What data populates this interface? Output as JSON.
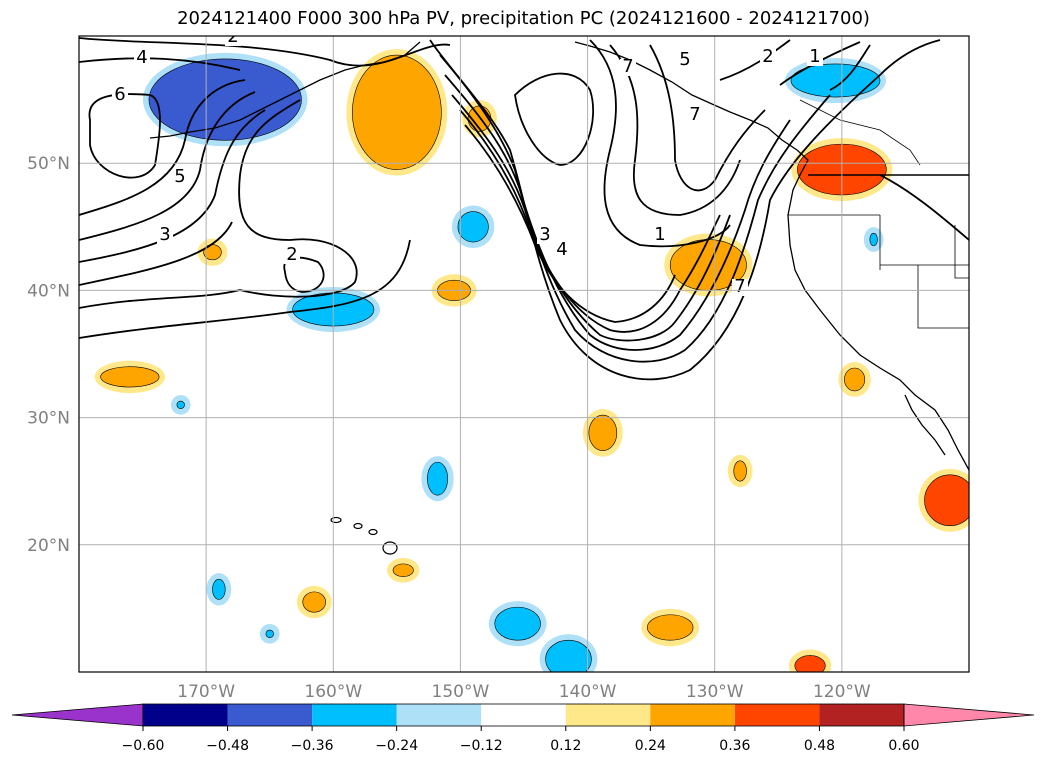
{
  "chart_data": {
    "type": "contour-map",
    "title": "2024121400 F000 300 hPa PV, precipitation PC (2024121600 - 2024121700)",
    "lon_range": [
      -180,
      -110
    ],
    "lat_range": [
      10,
      60
    ],
    "grid": true,
    "lat_ticks": [
      {
        "value": 50,
        "label": "50°N"
      },
      {
        "value": 40,
        "label": "40°N"
      },
      {
        "value": 30,
        "label": "30°N"
      },
      {
        "value": 20,
        "label": "20°N"
      }
    ],
    "lon_ticks": [
      {
        "value": -170,
        "label": "170°W"
      },
      {
        "value": -160,
        "label": "160°W"
      },
      {
        "value": -150,
        "label": "150°W"
      },
      {
        "value": -140,
        "label": "140°W"
      },
      {
        "value": -130,
        "label": "130°W"
      },
      {
        "value": -120,
        "label": "120°W"
      }
    ],
    "colorbar": {
      "ticks": [
        "−0.60",
        "−0.48",
        "−0.36",
        "−0.24",
        "−0.12",
        "0.12",
        "0.24",
        "0.36",
        "0.48",
        "0.60"
      ],
      "colors": [
        "#9933cc",
        "#00008b",
        "#3a5bd0",
        "#00bfff",
        "#aee0f8",
        "#ffffff",
        "#ffe88a",
        "#ffa500",
        "#ff4500",
        "#b22222",
        "#ff88aa"
      ],
      "extend": "both"
    },
    "pv_contour_labels": [
      "2",
      "4",
      "6",
      "5",
      "3",
      "2",
      "3",
      "4",
      "7",
      "1",
      "2",
      "1",
      "7",
      "5",
      "7"
    ],
    "precip_blobs": [
      {
        "lon": -168.5,
        "lat": 55.0,
        "level": "#3a5bd0",
        "rx": 6,
        "ry": 3.2
      },
      {
        "lon": -155.0,
        "lat": 54.0,
        "level": "#ffa500",
        "rx": 3.5,
        "ry": 4.5
      },
      {
        "lon": -120.0,
        "lat": 49.5,
        "level": "#ff4500",
        "rx": 3.5,
        "ry": 2.0
      },
      {
        "lon": -120.5,
        "lat": 56.5,
        "level": "#00bfff",
        "rx": 3.5,
        "ry": 1.3
      },
      {
        "lon": -130.5,
        "lat": 42.0,
        "level": "#ffa500",
        "rx": 3.0,
        "ry": 2.0
      },
      {
        "lon": -160.0,
        "lat": 38.5,
        "level": "#00bfff",
        "rx": 3.2,
        "ry": 1.3
      },
      {
        "lon": -150.5,
        "lat": 40.0,
        "level": "#ffa500",
        "rx": 1.3,
        "ry": 0.8
      },
      {
        "lon": -149.0,
        "lat": 45.0,
        "level": "#00bfff",
        "rx": 1.2,
        "ry": 1.2
      },
      {
        "lon": -148.5,
        "lat": 53.5,
        "level": "#ffa500",
        "rx": 0.9,
        "ry": 1.0
      },
      {
        "lon": -169.5,
        "lat": 43.0,
        "level": "#ffa500",
        "rx": 0.7,
        "ry": 0.6
      },
      {
        "lon": -176.0,
        "lat": 33.2,
        "level": "#ffa500",
        "rx": 2.3,
        "ry": 0.8
      },
      {
        "lon": -138.8,
        "lat": 28.8,
        "level": "#ffa500",
        "rx": 1.1,
        "ry": 1.4
      },
      {
        "lon": -128.0,
        "lat": 25.8,
        "level": "#ffa500",
        "rx": 0.5,
        "ry": 0.8
      },
      {
        "lon": -111.5,
        "lat": 23.5,
        "level": "#ff4500",
        "rx": 2.0,
        "ry": 2.0
      },
      {
        "lon": -119.0,
        "lat": 33.0,
        "level": "#ffa500",
        "rx": 0.8,
        "ry": 0.9
      },
      {
        "lon": -151.8,
        "lat": 25.2,
        "level": "#00bfff",
        "rx": 0.8,
        "ry": 1.3
      },
      {
        "lon": -154.5,
        "lat": 18.0,
        "level": "#ffa500",
        "rx": 0.8,
        "ry": 0.5
      },
      {
        "lon": -169.0,
        "lat": 16.5,
        "level": "#00bfff",
        "rx": 0.5,
        "ry": 0.8
      },
      {
        "lon": -161.5,
        "lat": 15.5,
        "level": "#ffa500",
        "rx": 0.9,
        "ry": 0.8
      },
      {
        "lon": -145.5,
        "lat": 13.8,
        "level": "#00bfff",
        "rx": 1.8,
        "ry": 1.3
      },
      {
        "lon": -141.5,
        "lat": 11.0,
        "level": "#00bfff",
        "rx": 1.8,
        "ry": 1.5
      },
      {
        "lon": -133.5,
        "lat": 13.5,
        "level": "#ffa500",
        "rx": 1.8,
        "ry": 1.0
      },
      {
        "lon": -122.5,
        "lat": 10.5,
        "level": "#ff4500",
        "rx": 1.2,
        "ry": 0.8
      },
      {
        "lon": -172.0,
        "lat": 31.0,
        "level": "#00bfff",
        "rx": 0.3,
        "ry": 0.3
      },
      {
        "lon": -165.0,
        "lat": 13.0,
        "level": "#00bfff",
        "rx": 0.3,
        "ry": 0.3
      },
      {
        "lon": -117.5,
        "lat": 44.0,
        "level": "#00bfff",
        "rx": 0.3,
        "ry": 0.5
      }
    ]
  }
}
